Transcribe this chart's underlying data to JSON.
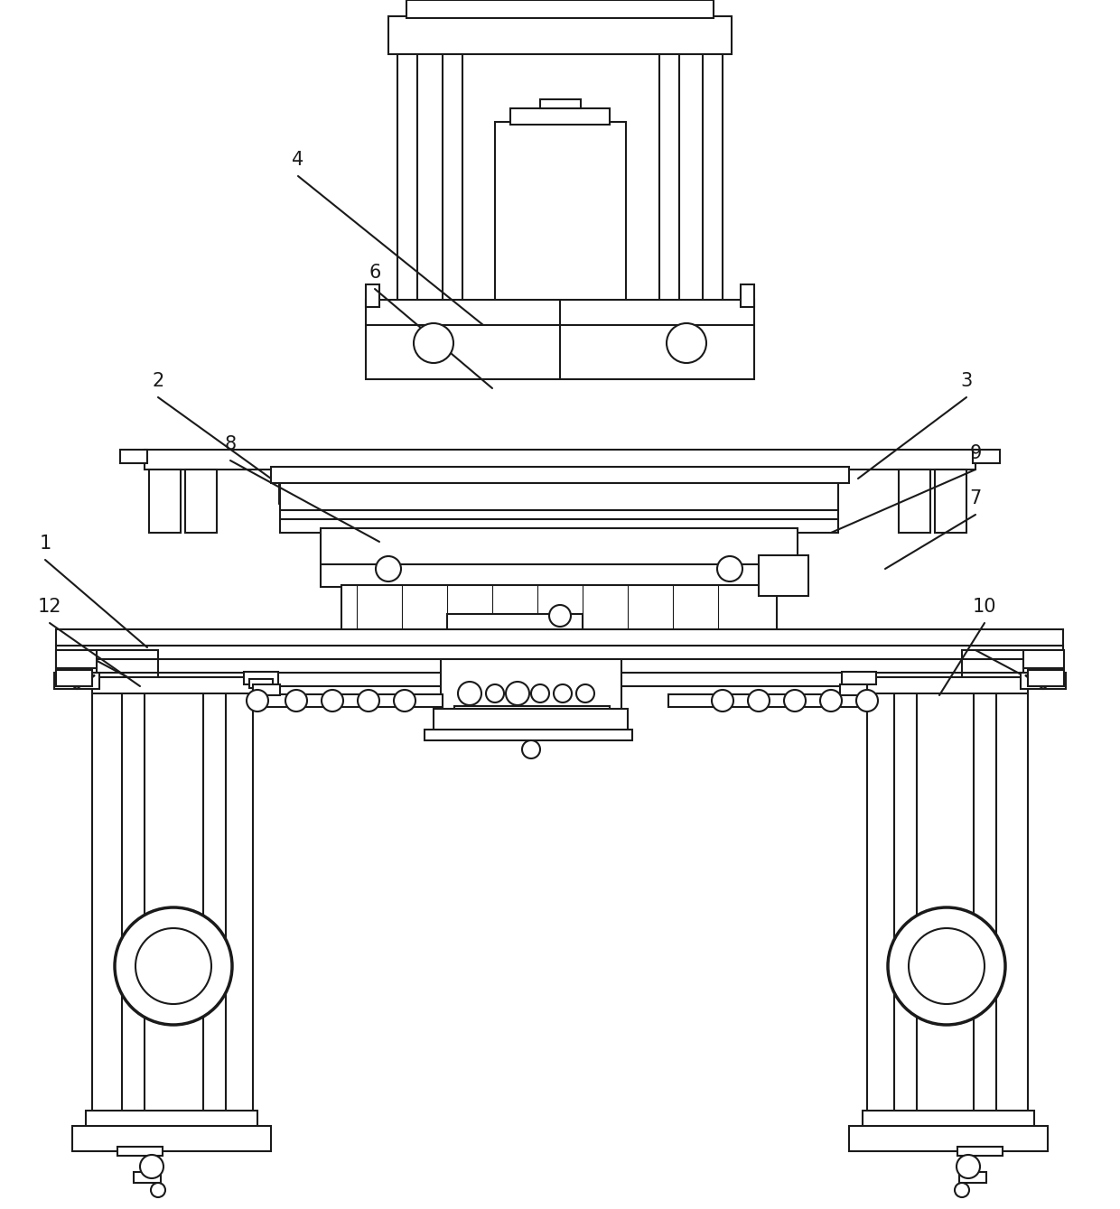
{
  "bg_color": "#ffffff",
  "line_color": "#1a1a1a",
  "line_width": 1.5,
  "label_fontsize": 15
}
